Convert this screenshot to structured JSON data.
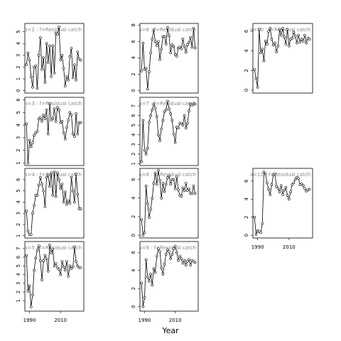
{
  "x_label": "Year",
  "chart_data": [
    {
      "type": "line",
      "title": "a=2 : f=Residual catch",
      "x": [
        1988,
        1989,
        1990,
        1991,
        1992,
        1993,
        1994,
        1995,
        1996,
        1997,
        1998,
        1999,
        2000,
        2001,
        2002,
        2003,
        2004,
        2005,
        2006,
        2007,
        2008,
        2009,
        2010,
        2011,
        2012,
        2013,
        2014,
        2015,
        2016,
        2017,
        2018,
        2019,
        2020,
        2021,
        2022,
        2023
      ],
      "values": [
        2.2,
        3.2,
        2.6,
        1.2,
        0.3,
        2.0,
        2.1,
        0.2,
        3.0,
        4.5,
        1.8,
        2.8,
        0.7,
        4.0,
        2.4,
        3.8,
        1.2,
        3.8,
        1.5,
        4.9,
        4.8,
        5.4,
        2.6,
        3.0,
        1.9,
        0.4,
        1.2,
        0.9,
        2.9,
        3.6,
        1.1,
        2.2,
        0.9,
        3.3,
        2.7,
        2.6
      ],
      "xlim": [
        1987,
        2025
      ],
      "ylim": [
        -0.2,
        5.7
      ],
      "yticks": [
        0,
        1,
        2,
        3,
        4,
        5
      ]
    },
    {
      "type": "line",
      "title": "a=3 : f=Residual catch",
      "x": [
        1988,
        1989,
        1990,
        1991,
        1992,
        1993,
        1994,
        1995,
        1996,
        1997,
        1998,
        1999,
        2000,
        2001,
        2002,
        2003,
        2004,
        2005,
        2006,
        2007,
        2008,
        2009,
        2010,
        2011,
        2012,
        2013,
        2014,
        2015,
        2016,
        2017,
        2018,
        2019,
        2020,
        2021,
        2022,
        2023
      ],
      "values": [
        4.1,
        1.0,
        2.8,
        2.3,
        2.6,
        3.2,
        3.4,
        3.5,
        4.5,
        4.6,
        4.3,
        4.8,
        4.5,
        5.2,
        3.3,
        5.7,
        4.4,
        4.5,
        5.3,
        4.3,
        5.4,
        5.2,
        4.2,
        4.3,
        3.4,
        2.9,
        3.8,
        4.4,
        5.0,
        4.8,
        3.3,
        3.1,
        4.9,
        3.3,
        4.2,
        4.2
      ],
      "xlim": [
        1987,
        2025
      ],
      "ylim": [
        0.8,
        6.2
      ],
      "yticks": [
        1,
        2,
        3,
        4,
        5,
        6
      ]
    },
    {
      "type": "line",
      "title": "a=4 : f=Residual catch",
      "x": [
        1988,
        1989,
        1990,
        1991,
        1992,
        1993,
        1994,
        1995,
        1996,
        1997,
        1998,
        1999,
        2000,
        2001,
        2002,
        2003,
        2004,
        2005,
        2006,
        2007,
        2008,
        2009,
        2010,
        2011,
        2012,
        2013,
        2014,
        2015,
        2016,
        2017,
        2018,
        2019,
        2020,
        2021,
        2022,
        2023
      ],
      "values": [
        3.2,
        1.4,
        1.1,
        1.1,
        3.0,
        3.7,
        4.6,
        4.6,
        5.5,
        6.2,
        5.6,
        5.0,
        3.6,
        6.2,
        6.4,
        5.4,
        6.6,
        4.6,
        6.7,
        4.5,
        6.6,
        6.0,
        5.2,
        5.6,
        4.0,
        4.9,
        3.8,
        4.1,
        3.9,
        6.2,
        5.0,
        4.0,
        6.5,
        4.7,
        3.4,
        3.4
      ],
      "xlim": [
        1987,
        2025
      ],
      "ylim": [
        0.8,
        7.0
      ],
      "yticks": [
        1,
        2,
        3,
        4,
        5,
        6
      ]
    },
    {
      "type": "line",
      "title": "a=5 : f=Residual catch",
      "x": [
        1988,
        1989,
        1990,
        1991,
        1992,
        1993,
        1994,
        1995,
        1996,
        1997,
        1998,
        1999,
        2000,
        2001,
        2002,
        2003,
        2004,
        2005,
        2006,
        2007,
        2008,
        2009,
        2010,
        2011,
        2012,
        2013,
        2014,
        2015,
        2016,
        2017,
        2018,
        2019,
        2020,
        2021,
        2022,
        2023
      ],
      "values": [
        6.2,
        2.1,
        2.7,
        0.3,
        1.7,
        4.5,
        5.9,
        6.8,
        7.3,
        5.6,
        3.4,
        5.6,
        6.2,
        5.8,
        4.4,
        7.4,
        6.5,
        6.9,
        5.0,
        5.3,
        4.8,
        4.6,
        4.0,
        5.5,
        4.9,
        4.5,
        5.5,
        3.8,
        5.0,
        4.7,
        4.9,
        7.2,
        5.5,
        5.0,
        4.8,
        4.8
      ],
      "xlim": [
        1987,
        2025
      ],
      "ylim": [
        -0.2,
        7.8
      ],
      "yticks": [
        1,
        2,
        3,
        4,
        5,
        6,
        7
      ],
      "xticks": [
        1990,
        2010
      ]
    },
    {
      "type": "line",
      "title": "a=6 : f=Residual catch",
      "x": [
        1988,
        1989,
        1990,
        1991,
        1992,
        1993,
        1994,
        1995,
        1996,
        1997,
        1998,
        1999,
        2000,
        2001,
        2002,
        2003,
        2004,
        2005,
        2006,
        2007,
        2008,
        2009,
        2010,
        2011,
        2012,
        2013,
        2014,
        2015,
        2016,
        2017,
        2018,
        2019,
        2020,
        2021,
        2022,
        2023
      ],
      "values": [
        2.4,
        5.8,
        2.6,
        2.7,
        0.2,
        2.3,
        4.6,
        6.3,
        7.4,
        6.0,
        5.5,
        6.0,
        3.8,
        5.1,
        6.6,
        6.6,
        5.7,
        7.7,
        6.7,
        4.6,
        5.6,
        5.4,
        4.4,
        4.2,
        5.2,
        5.3,
        5.1,
        6.3,
        5.4,
        4.7,
        5.6,
        5.9,
        6.5,
        5.3,
        7.6,
        5.2
      ],
      "xlim": [
        1987,
        2025
      ],
      "ylim": [
        -0.3,
        8.2
      ],
      "yticks": [
        0,
        2,
        4,
        6,
        8
      ]
    },
    {
      "type": "line",
      "title": "a=7 : f=Residual catch",
      "x": [
        1988,
        1989,
        1990,
        1991,
        1992,
        1993,
        1994,
        1995,
        1996,
        1997,
        1998,
        1999,
        2000,
        2001,
        2002,
        2003,
        2004,
        2005,
        2006,
        2007,
        2008,
        2009,
        2010,
        2011,
        2012,
        2013,
        2014,
        2015,
        2016,
        2017,
        2018,
        2019,
        2020,
        2021,
        2022,
        2023
      ],
      "values": [
        1.2,
        5.5,
        2.4,
        2.0,
        2.6,
        5.3,
        6.0,
        6.6,
        7.2,
        6.8,
        5.9,
        4.0,
        3.4,
        4.6,
        5.5,
        6.4,
        6.6,
        7.5,
        6.7,
        6.2,
        5.5,
        4.1,
        3.2,
        4.8,
        4.7,
        5.2,
        5.2,
        5.0,
        6.0,
        4.7,
        5.2,
        6.5,
        7.2,
        7.1,
        7.2,
        7.2
      ],
      "xlim": [
        1987,
        2025
      ],
      "ylim": [
        0.8,
        7.9
      ],
      "yticks": [
        1,
        2,
        3,
        4,
        5,
        6,
        7
      ]
    },
    {
      "type": "line",
      "title": "a=8 : f=Residual catch",
      "x": [
        1988,
        1989,
        1990,
        1991,
        1992,
        1993,
        1994,
        1995,
        1996,
        1997,
        1998,
        1999,
        2000,
        2001,
        2002,
        2003,
        2004,
        2005,
        2006,
        2007,
        2008,
        2009,
        2010,
        2011,
        2012,
        2013,
        2014,
        2015,
        2016,
        2017,
        2018,
        2019,
        2020,
        2021,
        2022,
        2023
      ],
      "values": [
        1.7,
        0.0,
        0.3,
        5.3,
        3.4,
        1.9,
        2.8,
        4.0,
        5.6,
        6.7,
        5.5,
        7.0,
        5.9,
        4.0,
        5.6,
        4.7,
        5.5,
        6.2,
        6.4,
        5.5,
        6.0,
        6.0,
        5.0,
        6.3,
        4.9,
        4.3,
        4.2,
        5.1,
        4.8,
        5.6,
        4.8,
        5.0,
        4.5,
        4.5,
        5.3,
        4.5
      ],
      "xlim": [
        1987,
        2025
      ],
      "ylim": [
        -0.3,
        7.2
      ],
      "yticks": [
        0,
        2,
        4,
        6
      ]
    },
    {
      "type": "line",
      "title": "a=9 : f=Residual catch",
      "x": [
        1988,
        1989,
        1990,
        1991,
        1992,
        1993,
        1994,
        1995,
        1996,
        1997,
        1998,
        1999,
        2000,
        2001,
        2002,
        2003,
        2004,
        2005,
        2006,
        2007,
        2008,
        2009,
        2010,
        2011,
        2012,
        2013,
        2014,
        2015,
        2016,
        2017,
        2018,
        2019,
        2020,
        2021,
        2022,
        2023
      ],
      "values": [
        2.6,
        0.0,
        1.0,
        5.2,
        3.3,
        2.8,
        3.6,
        2.4,
        4.2,
        3.8,
        5.6,
        6.4,
        6.1,
        4.3,
        3.6,
        4.7,
        5.8,
        6.3,
        6.1,
        5.3,
        5.8,
        6.4,
        6.7,
        6.0,
        5.1,
        5.6,
        5.3,
        4.8,
        5.1,
        4.6,
        5.0,
        5.2,
        4.6,
        5.1,
        5.0,
        4.9
      ],
      "xlim": [
        1987,
        2025
      ],
      "ylim": [
        -0.5,
        7.2
      ],
      "yticks": [
        0,
        2,
        4,
        6
      ],
      "xticks": [
        1990,
        2010
      ]
    },
    {
      "type": "line",
      "title": "a=10 : f=Residual catch",
      "x": [
        1988,
        1989,
        1990,
        1991,
        1992,
        1993,
        1994,
        1995,
        1996,
        1997,
        1998,
        1999,
        2000,
        2001,
        2002,
        2003,
        2004,
        2005,
        2006,
        2007,
        2008,
        2009,
        2010,
        2011,
        2012,
        2013,
        2014,
        2015,
        2016,
        2017,
        2018,
        2019,
        2020,
        2021,
        2022,
        2023
      ],
      "values": [
        2.1,
        1.2,
        0.3,
        6.2,
        3.8,
        4.2,
        3.0,
        5.0,
        4.7,
        6.0,
        6.3,
        5.2,
        4.6,
        4.8,
        3.9,
        4.5,
        6.2,
        5.6,
        6.3,
        5.4,
        4.7,
        6.2,
        4.5,
        5.2,
        5.3,
        5.9,
        5.5,
        4.8,
        5.6,
        4.9,
        5.2,
        5.0,
        5.6,
        4.8,
        5.3,
        5.2
      ],
      "xlim": [
        1987,
        2025
      ],
      "ylim": [
        -0.3,
        6.8
      ],
      "yticks": [
        0,
        2,
        4,
        6
      ]
    },
    {
      "type": "line",
      "title": "a=11 : f=Residual catch",
      "x": [
        1988,
        1989,
        1990,
        1991,
        1992,
        1993,
        1994,
        1995,
        1996,
        1997,
        1998,
        1999,
        2000,
        2001,
        2002,
        2003,
        2004,
        2005,
        2006,
        2007,
        2008,
        2009,
        2010,
        2011,
        2012,
        2013,
        2014,
        2015,
        2016,
        2017,
        2018,
        2019,
        2020,
        2021,
        2022,
        2023
      ],
      "values": [
        2.0,
        0.1,
        0.5,
        0.4,
        0.3,
        1.3,
        7.0,
        6.8,
        5.8,
        5.1,
        4.5,
        5.6,
        6.7,
        6.8,
        5.4,
        5.2,
        4.8,
        5.5,
        4.5,
        5.0,
        5.3,
        4.4,
        4.0,
        4.8,
        5.6,
        5.8,
        6.2,
        6.4,
        6.3,
        5.6,
        5.7,
        5.5,
        5.2,
        4.9,
        5.0,
        5.1
      ],
      "xlim": [
        1987,
        2025
      ],
      "ylim": [
        -0.3,
        7.4
      ],
      "yticks": [
        0,
        2,
        4,
        6
      ],
      "xticks": [
        1990,
        2010
      ]
    }
  ]
}
